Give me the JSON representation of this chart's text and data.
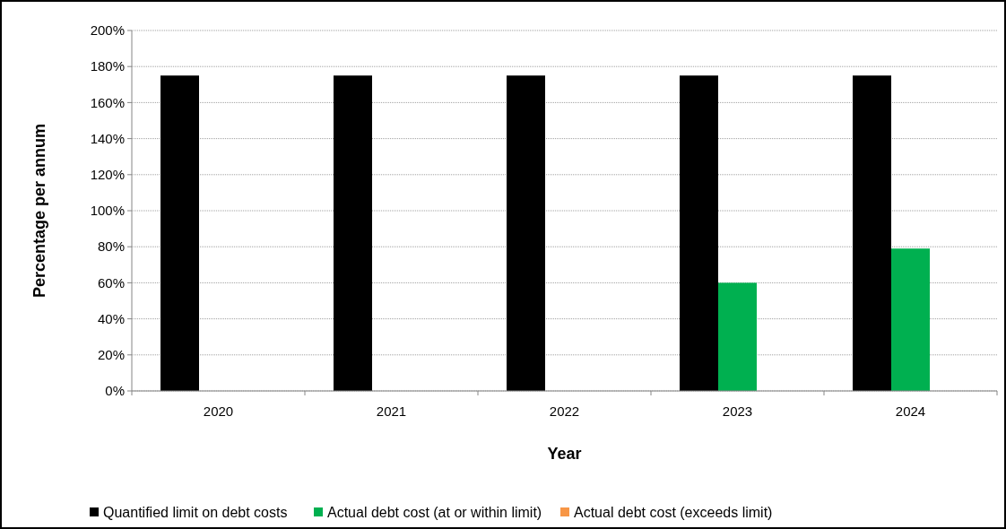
{
  "chart_data": {
    "type": "bar",
    "xlabel": "Year",
    "ylabel": "Percentage per annum",
    "categories": [
      "2020",
      "2021",
      "2022",
      "2023",
      "2024"
    ],
    "series": [
      {
        "name": "Quantified limit on debt costs",
        "color": "#000000",
        "values": [
          175,
          175,
          175,
          175,
          175
        ]
      },
      {
        "name": "Actual debt cost (at or within limit)",
        "color": "#00b050",
        "values": [
          null,
          null,
          null,
          60,
          79
        ]
      },
      {
        "name": "Actual debt cost (exceeds limit)",
        "color": "#f79646",
        "values": [
          null,
          null,
          null,
          null,
          null
        ]
      }
    ],
    "ylim": [
      0,
      200
    ],
    "yticks": [
      {
        "value": 0,
        "label": "0%"
      },
      {
        "value": 20,
        "label": "20%"
      },
      {
        "value": 40,
        "label": "40%"
      },
      {
        "value": 60,
        "label": "60%"
      },
      {
        "value": 80,
        "label": "80%"
      },
      {
        "value": 100,
        "label": "100%"
      },
      {
        "value": 120,
        "label": "120%"
      },
      {
        "value": 140,
        "label": "140%"
      },
      {
        "value": 160,
        "label": "160%"
      },
      {
        "value": 180,
        "label": "180%"
      },
      {
        "value": 200,
        "label": "200%"
      }
    ],
    "grid": "y",
    "legend": "bottom"
  }
}
